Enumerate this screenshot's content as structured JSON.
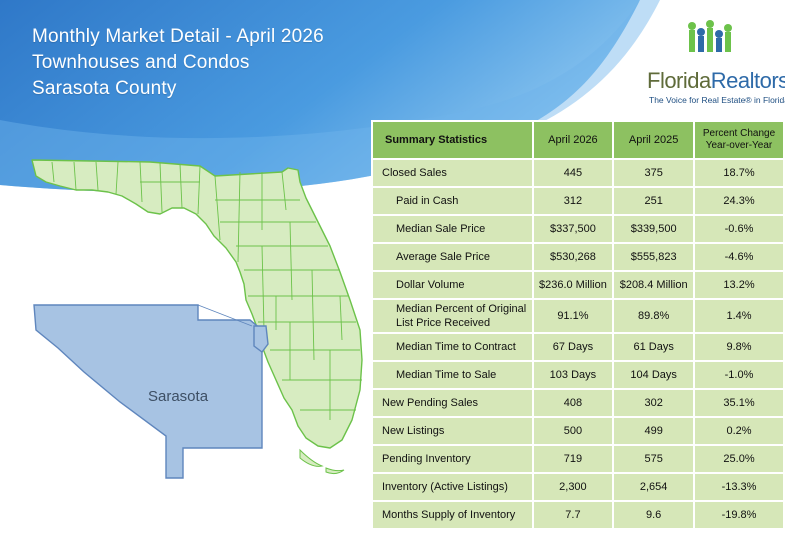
{
  "header": {
    "title_line1": "Monthly Market Detail - April 2026",
    "title_line2": "Townhouses and Condos",
    "title_line3": "Sarasota County"
  },
  "logo": {
    "name_part1": "Florida",
    "name_part2": "Realtors",
    "mark": "®",
    "tagline": "The Voice for Real Estate® in Florida"
  },
  "map": {
    "county_label": "Sarasota",
    "state_fill": "#d7ecc1",
    "state_stroke": "#6cc24a",
    "county_fill": "#a7c3e3",
    "county_stroke": "#5f86bd"
  },
  "table": {
    "headers": [
      "Summary Statistics",
      "April 2026",
      "April 2025",
      "Percent Change Year-over-Year"
    ],
    "rows": [
      {
        "label": "Closed Sales",
        "cur": "445",
        "prev": "375",
        "chg": "18.7%"
      },
      {
        "label": "Paid in Cash",
        "cur": "312",
        "prev": "251",
        "chg": "24.3%"
      },
      {
        "label": "Median Sale Price",
        "cur": "$337,500",
        "prev": "$339,500",
        "chg": "-0.6%"
      },
      {
        "label": "Average Sale Price",
        "cur": "$530,268",
        "prev": "$555,823",
        "chg": "-4.6%"
      },
      {
        "label": "Dollar Volume",
        "cur": "$236.0 Million",
        "prev": "$208.4 Million",
        "chg": "13.2%"
      },
      {
        "label": "Median Percent of Original List Price Received",
        "cur": "91.1%",
        "prev": "89.8%",
        "chg": "1.4%"
      },
      {
        "label": "Median Time to Contract",
        "cur": "67 Days",
        "prev": "61 Days",
        "chg": "9.8%"
      },
      {
        "label": "Median Time to Sale",
        "cur": "103 Days",
        "prev": "104 Days",
        "chg": "-1.0%"
      },
      {
        "label": "New Pending Sales",
        "cur": "408",
        "prev": "302",
        "chg": "35.1%"
      },
      {
        "label": "New Listings",
        "cur": "500",
        "prev": "499",
        "chg": "0.2%"
      },
      {
        "label": "Pending Inventory",
        "cur": "719",
        "prev": "575",
        "chg": "25.0%"
      },
      {
        "label": "Inventory (Active Listings)",
        "cur": "2,300",
        "prev": "2,654",
        "chg": "-13.3%"
      },
      {
        "label": "Months Supply of Inventory",
        "cur": "7.7",
        "prev": "9.6",
        "chg": "-19.8%"
      }
    ]
  }
}
